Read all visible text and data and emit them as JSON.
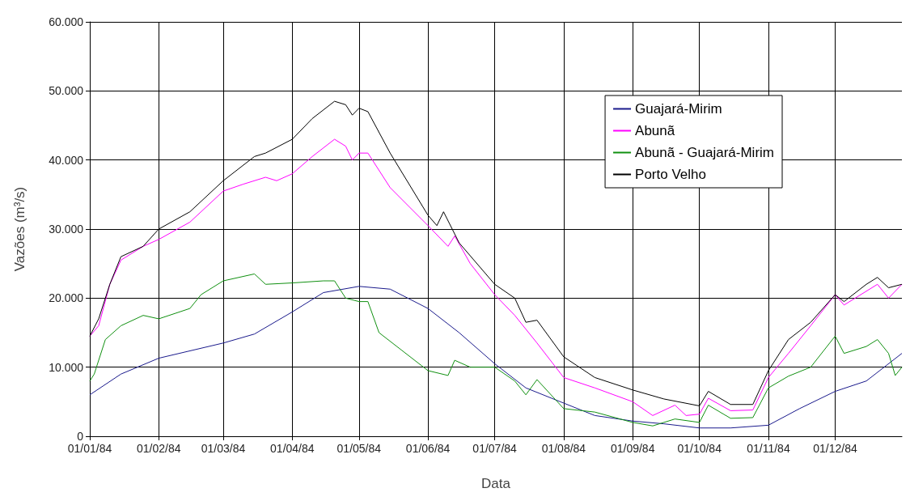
{
  "chart_data": {
    "type": "line",
    "xlabel": "Data",
    "ylabel": "Vazões (m³/s)",
    "xlim": [
      "1984-01-01",
      "1984-12-31"
    ],
    "xticks": [
      {
        "value": "1984-01-01",
        "label": "01/01/84"
      },
      {
        "value": "1984-02-01",
        "label": "01/02/84"
      },
      {
        "value": "1984-03-01",
        "label": "01/03/84"
      },
      {
        "value": "1984-04-01",
        "label": "01/04/84"
      },
      {
        "value": "1984-05-01",
        "label": "01/05/84"
      },
      {
        "value": "1984-06-01",
        "label": "01/06/84"
      },
      {
        "value": "1984-07-01",
        "label": "01/07/84"
      },
      {
        "value": "1984-08-01",
        "label": "01/08/84"
      },
      {
        "value": "1984-09-01",
        "label": "01/09/84"
      },
      {
        "value": "1984-10-01",
        "label": "01/10/84"
      },
      {
        "value": "1984-11-01",
        "label": "01/11/84"
      },
      {
        "value": "1984-12-01",
        "label": "01/12/84"
      }
    ],
    "ylim": [
      0,
      60000
    ],
    "yticks": [
      0,
      {
        "value": 10000,
        "label": "10.000"
      },
      {
        "value": 20000,
        "label": "20.000"
      },
      {
        "value": 30000,
        "label": "30.000"
      },
      {
        "value": 40000,
        "label": "40.000"
      },
      {
        "value": 50000,
        "label": "50.000"
      },
      {
        "value": 60000,
        "label": "60.000"
      }
    ],
    "grid": true,
    "legend": "top right",
    "marker": "none",
    "line_style": "solid",
    "series": [
      {
        "name": "Guajará-Mirim",
        "color": "#1a1a8c",
        "x": [
          "1984-01-01",
          "1984-01-15",
          "1984-02-01",
          "1984-03-01",
          "1984-03-15",
          "1984-04-01",
          "1984-04-15",
          "1984-05-01",
          "1984-05-15",
          "1984-06-01",
          "1984-06-15",
          "1984-07-01",
          "1984-07-15",
          "1984-08-01",
          "1984-08-15",
          "1984-09-01",
          "1984-09-15",
          "1984-10-01",
          "1984-10-15",
          "1984-11-01",
          "1984-11-15",
          "1984-12-01",
          "1984-12-15",
          "1984-12-31"
        ],
        "values": [
          6000,
          9000,
          11300,
          13500,
          14800,
          18000,
          20800,
          21700,
          21300,
          18500,
          15000,
          10500,
          7000,
          4800,
          3000,
          2200,
          1800,
          1200,
          1200,
          1600,
          4000,
          6500,
          8000,
          12000
        ]
      },
      {
        "name": "Abunã",
        "color": "#ff00ff",
        "x": [
          "1984-01-01",
          "1984-01-05",
          "1984-01-10",
          "1984-01-15",
          "1984-01-25",
          "1984-02-01",
          "1984-02-15",
          "1984-03-01",
          "1984-03-10",
          "1984-03-20",
          "1984-03-25",
          "1984-04-01",
          "1984-04-10",
          "1984-04-20",
          "1984-04-25",
          "1984-04-28",
          "1984-05-01",
          "1984-05-05",
          "1984-05-15",
          "1984-06-01",
          "1984-06-10",
          "1984-06-13",
          "1984-06-20",
          "1984-07-01",
          "1984-07-10",
          "1984-07-20",
          "1984-08-01",
          "1984-08-15",
          "1984-09-01",
          "1984-09-10",
          "1984-09-20",
          "1984-09-25",
          "1984-10-01",
          "1984-10-05",
          "1984-10-15",
          "1984-10-25",
          "1984-11-01",
          "1984-11-10",
          "1984-11-20",
          "1984-12-01",
          "1984-12-05",
          "1984-12-15",
          "1984-12-20",
          "1984-12-25",
          "1984-12-31"
        ],
        "values": [
          14500,
          16000,
          22000,
          25500,
          27500,
          28500,
          31000,
          35500,
          36500,
          37500,
          37000,
          38000,
          40500,
          43000,
          42000,
          40000,
          41000,
          41000,
          36000,
          30500,
          27500,
          29000,
          25000,
          20500,
          17500,
          13500,
          8500,
          7000,
          5000,
          3000,
          4500,
          3000,
          3200,
          5500,
          3700,
          3800,
          8500,
          12000,
          16000,
          20500,
          19000,
          21000,
          22000,
          20000,
          22000
        ]
      },
      {
        "name": "Abunã - Guajará-Mirim",
        "color": "#109010",
        "x": [
          "1984-01-01",
          "1984-01-03",
          "1984-01-08",
          "1984-01-15",
          "1984-01-25",
          "1984-02-01",
          "1984-02-15",
          "1984-02-20",
          "1984-03-01",
          "1984-03-15",
          "1984-03-20",
          "1984-04-01",
          "1984-04-15",
          "1984-04-20",
          "1984-04-25",
          "1984-05-01",
          "1984-05-05",
          "1984-05-10",
          "1984-05-20",
          "1984-06-01",
          "1984-06-10",
          "1984-06-13",
          "1984-06-20",
          "1984-07-01",
          "1984-07-10",
          "1984-07-15",
          "1984-07-20",
          "1984-08-01",
          "1984-08-15",
          "1984-09-01",
          "1984-09-10",
          "1984-09-20",
          "1984-10-01",
          "1984-10-05",
          "1984-10-15",
          "1984-10-25",
          "1984-11-01",
          "1984-11-10",
          "1984-11-20",
          "1984-12-01",
          "1984-12-05",
          "1984-12-15",
          "1984-12-20",
          "1984-12-25",
          "1984-12-28",
          "1984-12-31"
        ],
        "values": [
          8000,
          9000,
          14000,
          16000,
          17500,
          17000,
          18500,
          20500,
          22500,
          23500,
          22000,
          22200,
          22500,
          22500,
          20000,
          19500,
          19500,
          15000,
          12500,
          9500,
          8800,
          11000,
          10000,
          10000,
          8000,
          6000,
          8200,
          4000,
          3500,
          2000,
          1500,
          2500,
          2000,
          4500,
          2600,
          2700,
          7000,
          8700,
          10000,
          14500,
          12000,
          13000,
          14000,
          12000,
          8800,
          10000
        ]
      },
      {
        "name": "Porto Velho",
        "color": "#000000",
        "x": [
          "1984-01-01",
          "1984-01-05",
          "1984-01-10",
          "1984-01-15",
          "1984-01-25",
          "1984-02-01",
          "1984-02-15",
          "1984-03-01",
          "1984-03-15",
          "1984-03-20",
          "1984-04-01",
          "1984-04-10",
          "1984-04-20",
          "1984-04-25",
          "1984-04-28",
          "1984-05-01",
          "1984-05-05",
          "1984-05-15",
          "1984-06-01",
          "1984-06-05",
          "1984-06-08",
          "1984-06-15",
          "1984-07-01",
          "1984-07-10",
          "1984-07-15",
          "1984-07-20",
          "1984-08-01",
          "1984-08-15",
          "1984-09-01",
          "1984-09-15",
          "1984-10-01",
          "1984-10-05",
          "1984-10-15",
          "1984-10-25",
          "1984-11-01",
          "1984-11-10",
          "1984-11-20",
          "1984-12-01",
          "1984-12-05",
          "1984-12-15",
          "1984-12-20",
          "1984-12-25",
          "1984-12-31"
        ],
        "values": [
          14500,
          17000,
          22000,
          26000,
          27500,
          30000,
          32500,
          37000,
          40500,
          41000,
          43000,
          46000,
          48500,
          48000,
          46500,
          47500,
          47000,
          41000,
          32000,
          30500,
          32500,
          28000,
          22000,
          20000,
          16500,
          16800,
          11500,
          8500,
          6700,
          5400,
          4400,
          6500,
          4600,
          4600,
          9500,
          14000,
          16500,
          20500,
          19500,
          22000,
          23000,
          21500,
          22000
        ]
      }
    ]
  }
}
